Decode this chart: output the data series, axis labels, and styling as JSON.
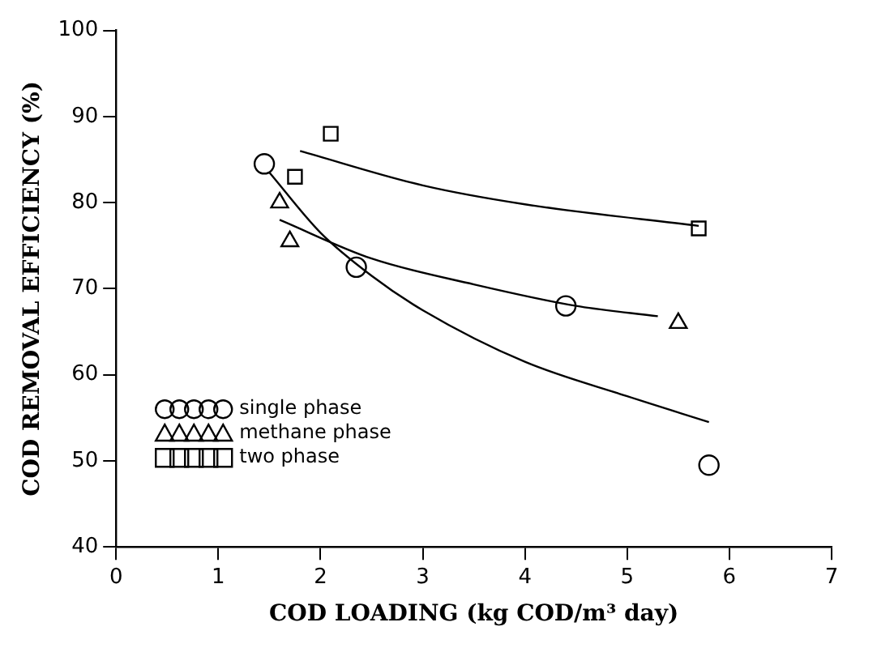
{
  "chart_data": {
    "type": "scatter",
    "xlabel": "COD LOADING (kg COD/m³ day)",
    "ylabel": "COD REMOVAL EFFICIENCY (%)",
    "xlim": [
      0,
      7
    ],
    "xticks": [
      0,
      1,
      2,
      3,
      4,
      5,
      6,
      7
    ],
    "ylim": [
      40,
      100
    ],
    "yticks": [
      40,
      50,
      60,
      70,
      80,
      90,
      100
    ],
    "grid": false,
    "legend": "bottom left",
    "series": [
      {
        "name": "single phase",
        "color": "#000000",
        "marker": "circle",
        "x": [
          1.45,
          2.35,
          4.4,
          5.8
        ],
        "values": [
          84.5,
          72.5,
          68,
          49.5
        ]
      },
      {
        "name": "methane phase",
        "color": "#000000",
        "marker": "triangle",
        "x": [
          1.6,
          1.7,
          5.5
        ],
        "values": [
          80,
          75.5,
          66
        ]
      },
      {
        "name": "two phase",
        "color": "#000000",
        "marker": "square",
        "x": [
          2.1,
          1.75,
          5.7
        ],
        "values": [
          88,
          83,
          77
        ]
      },
      {
        "type": "line",
        "color": "#000000",
        "marker": "none",
        "x": [
          1.5,
          2,
          2.5,
          3,
          4,
          5,
          5.8
        ],
        "values": [
          83.5,
          76.5,
          71.5,
          67.5,
          61.5,
          57.5,
          54.5
        ]
      },
      {
        "type": "line",
        "color": "#000000",
        "marker": "none",
        "x": [
          1.6,
          2.5,
          3.5,
          4.5,
          5.3
        ],
        "values": [
          78,
          73.5,
          70.5,
          68,
          66.8
        ]
      },
      {
        "type": "line",
        "color": "#000000",
        "marker": "none",
        "x": [
          1.8,
          3,
          4,
          5.7
        ],
        "values": [
          86,
          82,
          79.8,
          77.3
        ]
      }
    ]
  }
}
